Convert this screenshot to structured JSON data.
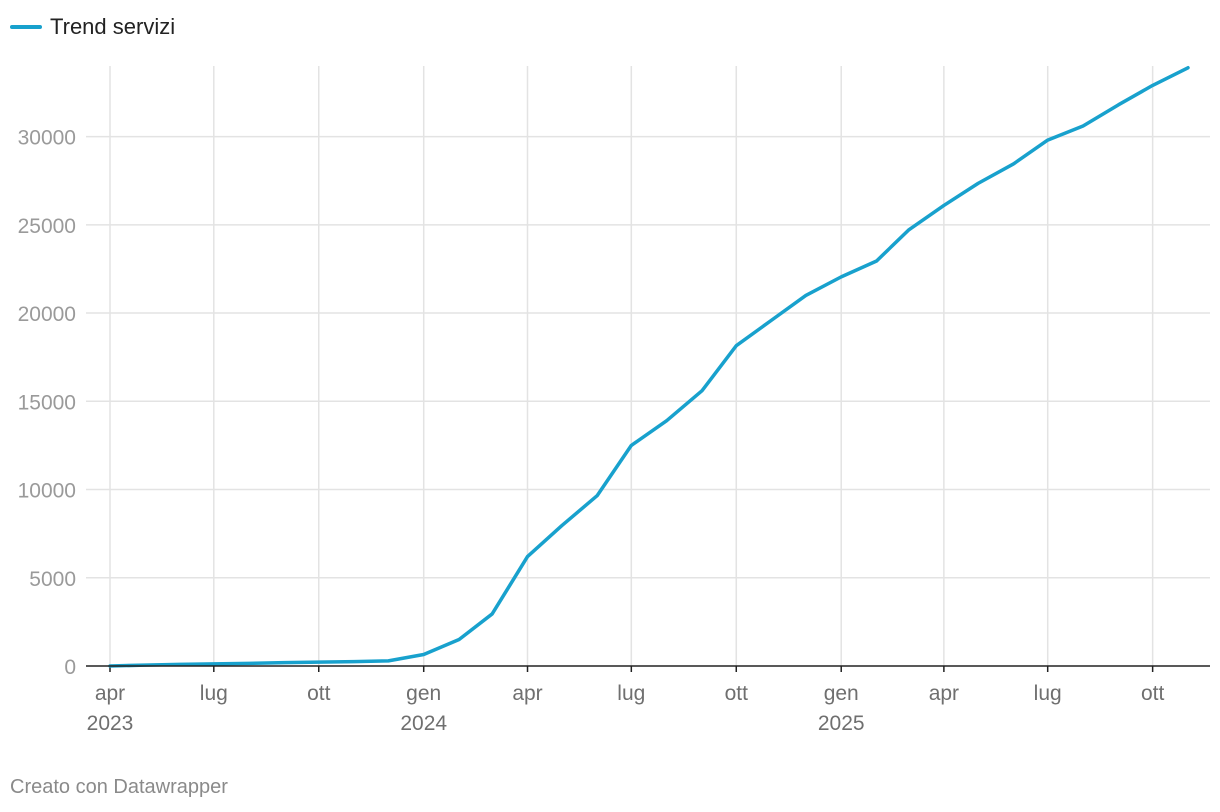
{
  "chart_data": {
    "type": "line",
    "series": [
      {
        "name": "Trend servizi",
        "color": "#18a1cd",
        "points": [
          [
            "2023-04-01",
            0
          ],
          [
            "2023-05-01",
            50
          ],
          [
            "2023-06-01",
            90
          ],
          [
            "2023-07-01",
            120
          ],
          [
            "2023-08-01",
            150
          ],
          [
            "2023-09-01",
            190
          ],
          [
            "2023-10-01",
            220
          ],
          [
            "2023-11-01",
            250
          ],
          [
            "2023-12-01",
            290
          ],
          [
            "2024-01-01",
            650
          ],
          [
            "2024-02-01",
            1500
          ],
          [
            "2024-03-01",
            2950
          ],
          [
            "2024-04-01",
            6200
          ],
          [
            "2024-05-01",
            7950
          ],
          [
            "2024-06-01",
            9650
          ],
          [
            "2024-07-01",
            12500
          ],
          [
            "2024-08-01",
            13900
          ],
          [
            "2024-09-01",
            15600
          ],
          [
            "2024-10-01",
            18150
          ],
          [
            "2024-11-01",
            19600
          ],
          [
            "2024-12-01",
            21000
          ],
          [
            "2025-01-01",
            22050
          ],
          [
            "2025-02-01",
            22950
          ],
          [
            "2025-03-01",
            24700
          ],
          [
            "2025-04-01",
            26100
          ],
          [
            "2025-05-01",
            27350
          ],
          [
            "2025-06-01",
            28450
          ],
          [
            "2025-07-01",
            29800
          ],
          [
            "2025-08-01",
            30600
          ],
          [
            "2025-09-01",
            31800
          ],
          [
            "2025-10-01",
            32900
          ],
          [
            "2025-11-01",
            33900
          ]
        ]
      }
    ],
    "x_axis": {
      "min": "2023-04-01",
      "max": "2025-11-01",
      "ticks": [
        {
          "date": "2023-04-01",
          "label": "apr",
          "year": "2023"
        },
        {
          "date": "2023-07-01",
          "label": "lug",
          "year": ""
        },
        {
          "date": "2023-10-01",
          "label": "ott",
          "year": ""
        },
        {
          "date": "2024-01-01",
          "label": "gen",
          "year": "2024"
        },
        {
          "date": "2024-04-01",
          "label": "apr",
          "year": ""
        },
        {
          "date": "2024-07-01",
          "label": "lug",
          "year": ""
        },
        {
          "date": "2024-10-01",
          "label": "ott",
          "year": ""
        },
        {
          "date": "2025-01-01",
          "label": "gen",
          "year": "2025"
        },
        {
          "date": "2025-04-01",
          "label": "apr",
          "year": ""
        },
        {
          "date": "2025-07-01",
          "label": "lug",
          "year": ""
        },
        {
          "date": "2025-10-01",
          "label": "ott",
          "year": ""
        }
      ]
    },
    "y_axis": {
      "min": 0,
      "max": 34000,
      "ticks": [
        0,
        5000,
        10000,
        15000,
        20000,
        25000,
        30000
      ]
    },
    "grid": true,
    "legend_position": "top-left"
  },
  "footer": {
    "credit": "Creato con Datawrapper"
  }
}
